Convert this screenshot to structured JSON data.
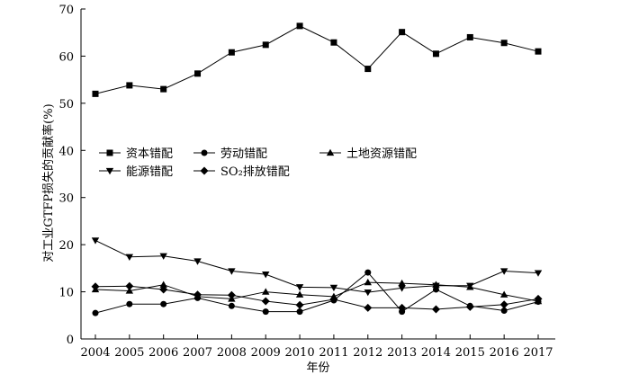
{
  "chart_data": {
    "type": "line",
    "title": "",
    "xlabel": "年份",
    "ylabel": "对工业GTFP损失的贡献率(%)",
    "ylim": [
      0,
      70
    ],
    "yticks": [
      0,
      10,
      20,
      30,
      40,
      50,
      60,
      70
    ],
    "categories": [
      "2004",
      "2005",
      "2006",
      "2007",
      "2008",
      "2009",
      "2010",
      "2011",
      "2012",
      "2013",
      "2014",
      "2015",
      "2016",
      "2017"
    ],
    "grid": false,
    "legend_position": "middle-left",
    "series": [
      {
        "name": "资本错配",
        "marker": "square",
        "values": [
          52.0,
          53.8,
          53.0,
          56.3,
          60.8,
          62.4,
          66.4,
          62.9,
          57.3,
          65.1,
          60.5,
          64.0,
          62.8,
          61.0
        ]
      },
      {
        "name": "劳动错配",
        "marker": "circle",
        "values": [
          5.5,
          7.4,
          7.4,
          8.7,
          7.0,
          5.8,
          5.8,
          8.2,
          14.1,
          5.8,
          10.5,
          7.0,
          6.0,
          7.9
        ]
      },
      {
        "name": "土地资源错配",
        "marker": "triangle-up",
        "values": [
          10.5,
          10.2,
          11.5,
          9.0,
          8.5,
          10.0,
          9.4,
          9.0,
          12.0,
          11.8,
          11.5,
          11.0,
          9.4,
          8.0
        ]
      },
      {
        "name": "能源错配",
        "marker": "triangle-down",
        "values": [
          20.9,
          17.4,
          17.6,
          16.5,
          14.4,
          13.7,
          11.0,
          10.9,
          9.9,
          10.8,
          11.3,
          11.3,
          14.4,
          14.0
        ]
      },
      {
        "name": "SO₂排放错配",
        "marker": "diamond",
        "values": [
          11.1,
          11.2,
          10.5,
          9.4,
          9.3,
          8.0,
          7.2,
          8.4,
          6.6,
          6.6,
          6.3,
          6.8,
          7.3,
          8.5
        ]
      }
    ]
  }
}
